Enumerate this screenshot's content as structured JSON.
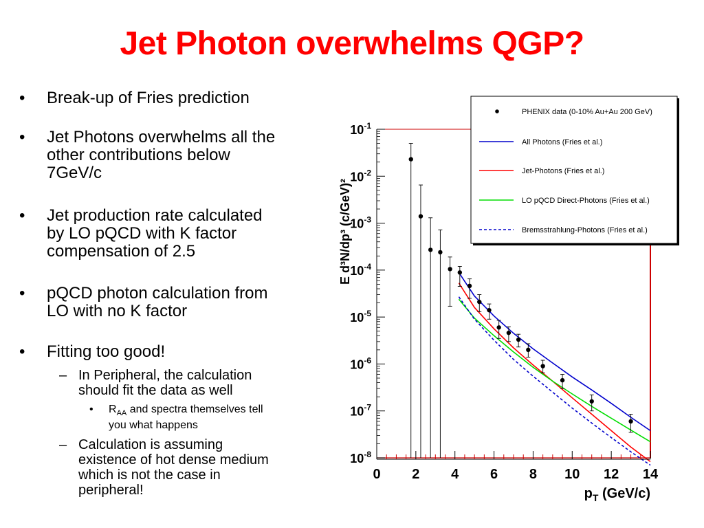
{
  "title": "Jet Photon overwhelms QGP?",
  "bullets": {
    "b1": "Break-up of Fries prediction",
    "b2": "Jet Photons overwhelms all the\nother contributions below\n7GeV/c",
    "b3": "Jet production rate calculated\nby LO pQCD with K factor\ncompensation of 2.5",
    "b4": "pQCD photon calculation from\nLO with no K factor",
    "b5": "Fitting too good!",
    "sub1": "In Peripheral, the calculation\nshould fit the data as well",
    "subsub1_pre": "R",
    "subsub1_sub": "AA",
    "subsub1_post": " and spectra themselves tell",
    "subsub1_line2": "you what happens",
    "sub2": "Calculation is assuming\nexistence of hot dense medium\nwhich is not the case in\nperipheral!",
    "bullet_char": "•",
    "dash_char": "–"
  },
  "chart_data": {
    "type": "scatter",
    "xlabel_main": "p",
    "xlabel_sub": "T",
    "xlabel_rest": " (GeV/c)",
    "ylabel": "E d³N/dp³ (c/GeV)²",
    "xlim": [
      0,
      14
    ],
    "ylim_log10": [
      -8,
      -1
    ],
    "x_ticks": [
      "0",
      "2",
      "4",
      "6",
      "8",
      "10",
      "12",
      "14"
    ],
    "y_ticks": [
      {
        "base": "10",
        "exp": "-1"
      },
      {
        "base": "10",
        "exp": "-2"
      },
      {
        "base": "10",
        "exp": "-3"
      },
      {
        "base": "10",
        "exp": "-4"
      },
      {
        "base": "10",
        "exp": "-5"
      },
      {
        "base": "10",
        "exp": "-6"
      },
      {
        "base": "10",
        "exp": "-7"
      },
      {
        "base": "10",
        "exp": "-8"
      }
    ],
    "data_points": [
      {
        "x": 1.75,
        "y": 0.023,
        "ylo": 1e-08,
        "yhi": 0.05
      },
      {
        "x": 2.25,
        "y": 0.0014,
        "ylo": 1e-08,
        "yhi": 0.0065
      },
      {
        "x": 2.75,
        "y": 0.00027,
        "ylo": 1e-08,
        "yhi": 0.0013
      },
      {
        "x": 3.25,
        "y": 0.00024,
        "ylo": 1e-08,
        "yhi": 0.00072
      },
      {
        "x": 3.75,
        "y": 0.000105,
        "ylo": 1.7e-05,
        "yhi": 0.00019
      },
      {
        "x": 4.25,
        "y": 8.9e-05,
        "ylo": 4.5e-05,
        "yhi": 0.00012
      },
      {
        "x": 4.75,
        "y": 4.6e-05,
        "ylo": 2.5e-05,
        "yhi": 6.5e-05
      },
      {
        "x": 5.25,
        "y": 2.1e-05,
        "ylo": 1.3e-05,
        "yhi": 3e-05
      },
      {
        "x": 5.75,
        "y": 1.4e-05,
        "ylo": 9e-06,
        "yhi": 1.9e-05
      },
      {
        "x": 6.25,
        "y": 6e-06,
        "ylo": 3.5e-06,
        "yhi": 8.5e-06
      },
      {
        "x": 6.75,
        "y": 4.6e-06,
        "ylo": 3e-06,
        "yhi": 6.2e-06
      },
      {
        "x": 7.25,
        "y": 3.3e-06,
        "ylo": 2.3e-06,
        "yhi": 4.3e-06
      },
      {
        "x": 7.75,
        "y": 2e-06,
        "ylo": 1.4e-06,
        "yhi": 2.7e-06
      },
      {
        "x": 8.5,
        "y": 9e-07,
        "ylo": 6.5e-07,
        "yhi": 1.2e-06
      },
      {
        "x": 9.5,
        "y": 4.5e-07,
        "ylo": 3e-07,
        "yhi": 6e-07
      },
      {
        "x": 11.0,
        "y": 1.6e-07,
        "ylo": 1e-07,
        "yhi": 2.2e-07
      },
      {
        "x": 13.0,
        "y": 6e-08,
        "ylo": 3.5e-08,
        "yhi": 8.5e-08
      }
    ],
    "series": [
      {
        "name": "All Photons (Fries et al.)",
        "color": "#0000cc",
        "dash": false,
        "points": [
          [
            4.2,
            8.9e-05
          ],
          [
            5,
            2.8e-05
          ],
          [
            6,
            1.05e-05
          ],
          [
            7,
            4.5e-06
          ],
          [
            8,
            2.1e-06
          ],
          [
            9,
            1.05e-06
          ],
          [
            10,
            5.3e-07
          ],
          [
            11,
            2.8e-07
          ],
          [
            12,
            1.45e-07
          ],
          [
            13,
            7.3e-08
          ],
          [
            14,
            3.8e-08
          ]
        ]
      },
      {
        "name": "Jet-Photons (Fries et al.)",
        "color": "#ff0000",
        "dash": false,
        "points": [
          [
            4.2,
            5.3e-05
          ],
          [
            5,
            1.6e-05
          ],
          [
            6,
            5.6e-06
          ],
          [
            7,
            2.2e-06
          ],
          [
            8,
            9.5e-07
          ],
          [
            9,
            4.3e-07
          ],
          [
            10,
            1.9e-07
          ],
          [
            11,
            8.5e-08
          ],
          [
            12,
            3.8e-08
          ],
          [
            13,
            1.7e-08
          ],
          [
            14,
            8.3e-09
          ]
        ]
      },
      {
        "name": "LO pQCD Direct-Photons (Fries et al.)",
        "color": "#00dd00",
        "dash": false,
        "points": [
          [
            4.2,
            2.4e-05
          ],
          [
            5,
            9.5e-06
          ],
          [
            6,
            4e-06
          ],
          [
            7,
            1.8e-06
          ],
          [
            8,
            8.5e-07
          ],
          [
            9,
            4.3e-07
          ],
          [
            10,
            2.3e-07
          ],
          [
            11,
            1.25e-07
          ],
          [
            12,
            7e-08
          ],
          [
            13,
            3.9e-08
          ],
          [
            14,
            2.2e-08
          ]
        ]
      },
      {
        "name": "Bremsstrahlung-Photons (Fries et al.)",
        "color": "#0000cc",
        "dash": true,
        "points": [
          [
            4.2,
            2.7e-05
          ],
          [
            5,
            9e-06
          ],
          [
            6,
            3.2e-06
          ],
          [
            7,
            1.25e-06
          ],
          [
            8,
            5.5e-07
          ],
          [
            9,
            2.5e-07
          ],
          [
            10,
            1.15e-07
          ],
          [
            11,
            5.5e-08
          ],
          [
            12,
            2.7e-08
          ],
          [
            13,
            1.35e-08
          ],
          [
            14,
            7e-09
          ]
        ]
      }
    ],
    "data_legend": "PHENIX data (0-10% Au+Au 200 GeV)",
    "legend_position": "top-right",
    "frame_color": "#cc0000"
  }
}
